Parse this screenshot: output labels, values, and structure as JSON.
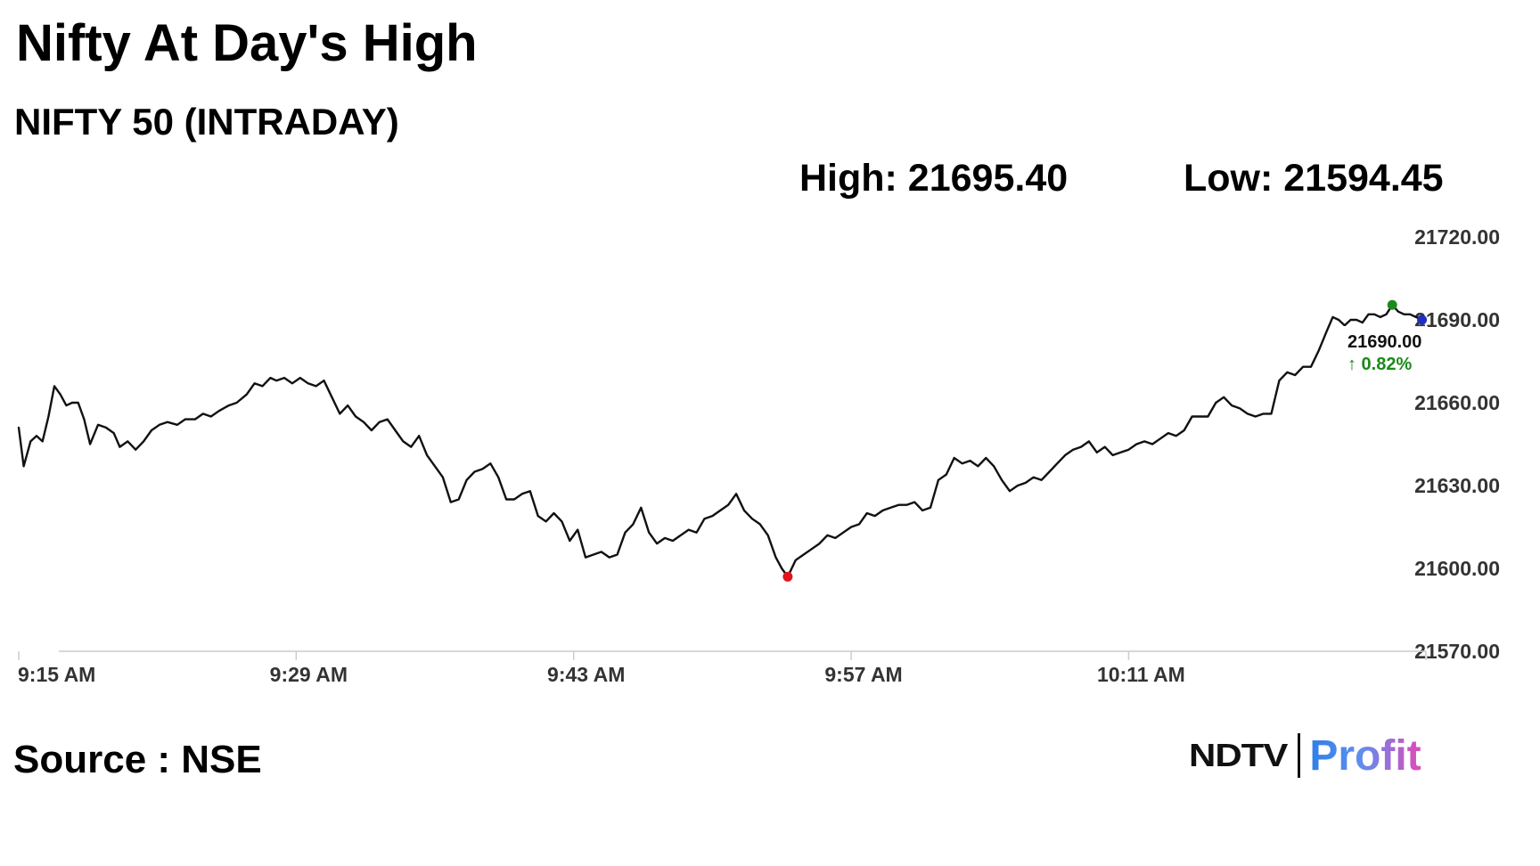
{
  "title": "Nifty At Day's High",
  "subtitle": "NIFTY 50 (INTRADAY)",
  "stats": {
    "high_text": "High: 21695.40",
    "low_text": "Low: 21594.45"
  },
  "source": "Source : NSE",
  "logo": {
    "ndtv": "NDTV",
    "profit": "Profit"
  },
  "tooltip": {
    "price": "21690.00",
    "change": "↑ 0.82%",
    "change_color": "#1a8a1a"
  },
  "colors": {
    "line": "#111111",
    "low_marker": "#e0161e",
    "high_marker": "#1d8a1d",
    "last_marker": "#1f2fbf",
    "axis": "#cccccc",
    "logo_blue": "#2f7fe6",
    "logo_pink": "#e04ab8"
  },
  "chart_data": {
    "type": "line",
    "title": "NIFTY 50 (INTRADAY)",
    "xlabel": "",
    "ylabel": "",
    "ylim": [
      21570,
      21720
    ],
    "xlim": [
      0,
      71
    ],
    "x_start": "9:15 AM",
    "x_unit": "minutes after 9:15 AM",
    "y_ticks": [
      "21720.00",
      "21690.00",
      "21660.00",
      "21630.00",
      "21600.00",
      "21570.00"
    ],
    "y_tick_values": [
      21720,
      21690,
      21660,
      21630,
      21600,
      21570
    ],
    "x_ticks": [
      "9:15 AM",
      "9:29 AM",
      "9:43 AM",
      "9:57 AM",
      "10:11 AM"
    ],
    "x_tick_values": [
      0,
      14,
      28,
      42,
      56
    ],
    "grid": false,
    "high": 21695.4,
    "low": 21594.45,
    "last": 21690.0,
    "change_pct": 0.82,
    "series": [
      {
        "points": [
          [
            0.0,
            21651
          ],
          [
            0.25,
            21637
          ],
          [
            0.6,
            21646
          ],
          [
            0.9,
            21648
          ],
          [
            1.2,
            21646
          ],
          [
            1.5,
            21655
          ],
          [
            1.8,
            21666
          ],
          [
            2.1,
            21663
          ],
          [
            2.4,
            21659
          ],
          [
            2.7,
            21660
          ],
          [
            3.0,
            21660
          ],
          [
            3.3,
            21654
          ],
          [
            3.6,
            21645
          ],
          [
            4.0,
            21652
          ],
          [
            4.4,
            21651
          ],
          [
            4.8,
            21649
          ],
          [
            5.1,
            21644
          ],
          [
            5.5,
            21646
          ],
          [
            5.9,
            21643
          ],
          [
            6.3,
            21646
          ],
          [
            6.7,
            21650
          ],
          [
            7.1,
            21652
          ],
          [
            7.5,
            21653
          ],
          [
            8.0,
            21652
          ],
          [
            8.4,
            21654
          ],
          [
            8.9,
            21654
          ],
          [
            9.3,
            21656
          ],
          [
            9.7,
            21655
          ],
          [
            10.1,
            21657
          ],
          [
            10.6,
            21659
          ],
          [
            11.0,
            21660
          ],
          [
            11.5,
            21663
          ],
          [
            11.9,
            21667
          ],
          [
            12.3,
            21666
          ],
          [
            12.7,
            21669
          ],
          [
            13.0,
            21668
          ],
          [
            13.4,
            21669
          ],
          [
            13.8,
            21667
          ],
          [
            14.2,
            21669
          ],
          [
            14.6,
            21667
          ],
          [
            15.0,
            21666
          ],
          [
            15.4,
            21668
          ],
          [
            15.8,
            21662
          ],
          [
            16.2,
            21656
          ],
          [
            16.6,
            21659
          ],
          [
            17.0,
            21655
          ],
          [
            17.4,
            21653
          ],
          [
            17.8,
            21650
          ],
          [
            18.2,
            21653
          ],
          [
            18.6,
            21654
          ],
          [
            19.0,
            21650
          ],
          [
            19.4,
            21646
          ],
          [
            19.8,
            21644
          ],
          [
            20.2,
            21648
          ],
          [
            20.6,
            21641
          ],
          [
            21.0,
            21637
          ],
          [
            21.4,
            21633
          ],
          [
            21.8,
            21624
          ],
          [
            22.2,
            21625
          ],
          [
            22.6,
            21632
          ],
          [
            23.0,
            21635
          ],
          [
            23.4,
            21636
          ],
          [
            23.8,
            21638
          ],
          [
            24.2,
            21633
          ],
          [
            24.6,
            21625
          ],
          [
            25.0,
            21625
          ],
          [
            25.4,
            21627
          ],
          [
            25.8,
            21628
          ],
          [
            26.2,
            21619
          ],
          [
            26.6,
            21617
          ],
          [
            27.0,
            21620
          ],
          [
            27.4,
            21617
          ],
          [
            27.8,
            21610
          ],
          [
            28.2,
            21614
          ],
          [
            28.6,
            21604
          ],
          [
            29.0,
            21605
          ],
          [
            29.4,
            21606
          ],
          [
            29.8,
            21604
          ],
          [
            30.2,
            21605
          ],
          [
            30.6,
            21613
          ],
          [
            31.0,
            21616
          ],
          [
            31.4,
            21622
          ],
          [
            31.8,
            21613
          ],
          [
            32.2,
            21609
          ],
          [
            32.6,
            21611
          ],
          [
            33.0,
            21610
          ],
          [
            33.4,
            21612
          ],
          [
            33.8,
            21614
          ],
          [
            34.2,
            21613
          ],
          [
            34.6,
            21618
          ],
          [
            35.0,
            21619
          ],
          [
            35.4,
            21621
          ],
          [
            35.8,
            21623
          ],
          [
            36.2,
            21627
          ],
          [
            36.6,
            21621
          ],
          [
            37.0,
            21618
          ],
          [
            37.4,
            21616
          ],
          [
            37.8,
            21612
          ],
          [
            38.2,
            21604
          ],
          [
            38.5,
            21600
          ],
          [
            38.8,
            21597
          ],
          [
            39.2,
            21603
          ],
          [
            39.6,
            21605
          ],
          [
            40.0,
            21607
          ],
          [
            40.4,
            21609
          ],
          [
            40.8,
            21612
          ],
          [
            41.2,
            21611
          ],
          [
            41.6,
            21613
          ],
          [
            42.0,
            21615
          ],
          [
            42.4,
            21616
          ],
          [
            42.8,
            21620
          ],
          [
            43.2,
            21619
          ],
          [
            43.6,
            21621
          ],
          [
            44.0,
            21622
          ],
          [
            44.4,
            21623
          ],
          [
            44.8,
            21623
          ],
          [
            45.2,
            21624
          ],
          [
            45.6,
            21621
          ],
          [
            46.0,
            21622
          ],
          [
            46.4,
            21632
          ],
          [
            46.8,
            21634
          ],
          [
            47.2,
            21640
          ],
          [
            47.6,
            21638
          ],
          [
            48.0,
            21639
          ],
          [
            48.4,
            21637
          ],
          [
            48.8,
            21640
          ],
          [
            49.2,
            21637
          ],
          [
            49.6,
            21632
          ],
          [
            50.0,
            21628
          ],
          [
            50.4,
            21630
          ],
          [
            50.8,
            21631
          ],
          [
            51.2,
            21633
          ],
          [
            51.6,
            21632
          ],
          [
            52.0,
            21635
          ],
          [
            52.4,
            21638
          ],
          [
            52.8,
            21641
          ],
          [
            53.2,
            21643
          ],
          [
            53.6,
            21644
          ],
          [
            54.0,
            21646
          ],
          [
            54.4,
            21642
          ],
          [
            54.8,
            21644
          ],
          [
            55.2,
            21641
          ],
          [
            55.6,
            21642
          ],
          [
            56.0,
            21643
          ],
          [
            56.4,
            21645
          ],
          [
            56.8,
            21646
          ],
          [
            57.2,
            21645
          ],
          [
            57.6,
            21647
          ],
          [
            58.0,
            21649
          ],
          [
            58.4,
            21648
          ],
          [
            58.8,
            21650
          ],
          [
            59.2,
            21655
          ],
          [
            59.6,
            21655
          ],
          [
            60.0,
            21655
          ],
          [
            60.4,
            21660
          ],
          [
            60.8,
            21662
          ],
          [
            61.2,
            21659
          ],
          [
            61.6,
            21658
          ],
          [
            62.0,
            21656
          ],
          [
            62.4,
            21655
          ],
          [
            62.8,
            21656
          ],
          [
            63.2,
            21656
          ],
          [
            63.6,
            21668
          ],
          [
            64.0,
            21671
          ],
          [
            64.4,
            21670
          ],
          [
            64.8,
            21673
          ],
          [
            65.2,
            21673
          ],
          [
            65.6,
            21679
          ],
          [
            66.0,
            21686
          ],
          [
            66.3,
            21691
          ],
          [
            66.6,
            21690
          ],
          [
            66.9,
            21688
          ],
          [
            67.2,
            21690
          ],
          [
            67.5,
            21690
          ],
          [
            67.8,
            21689
          ],
          [
            68.1,
            21692
          ],
          [
            68.4,
            21692
          ],
          [
            68.7,
            21691
          ],
          [
            69.0,
            21692
          ],
          [
            69.3,
            21695.4
          ],
          [
            69.6,
            21693
          ],
          [
            69.9,
            21692
          ],
          [
            70.2,
            21692
          ],
          [
            70.5,
            21691
          ],
          [
            70.8,
            21690
          ]
        ]
      }
    ],
    "markers": [
      {
        "role": "low",
        "x": 38.8,
        "y": 21597,
        "color": "#e0161e"
      },
      {
        "role": "high",
        "x": 69.3,
        "y": 21695.4,
        "color": "#1d8a1d"
      },
      {
        "role": "last",
        "x": 70.8,
        "y": 21690,
        "color": "#1f2fbf"
      }
    ]
  }
}
